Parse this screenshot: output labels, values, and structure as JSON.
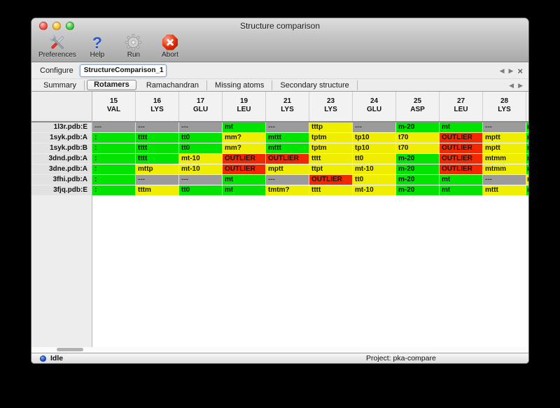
{
  "window_title": "Structure comparison",
  "toolbar": {
    "items": [
      {
        "label": "Preferences",
        "icon": "tools-icon"
      },
      {
        "label": "Help",
        "icon": "question-icon"
      },
      {
        "label": "Run",
        "icon": "gear-icon"
      },
      {
        "label": "Abort",
        "icon": "stop-x-icon"
      }
    ]
  },
  "configure": {
    "label": "Configure",
    "value": "StructureComparison_1"
  },
  "tabs": {
    "items": [
      "Summary",
      "Rotamers",
      "Ramachandran",
      "Missing atoms",
      "Secondary structure"
    ],
    "active": "Rotamers"
  },
  "rotamer_table": {
    "status_colors": {
      "green": "#00e400",
      "yellow": "#f0ee00",
      "red": "#f12800",
      "gray": "#9b9b9b"
    },
    "columns": [
      {
        "num": "15",
        "res": "VAL"
      },
      {
        "num": "16",
        "res": "LYS"
      },
      {
        "num": "17",
        "res": "GLU"
      },
      {
        "num": "19",
        "res": "LEU"
      },
      {
        "num": "21",
        "res": "LYS"
      },
      {
        "num": "23",
        "res": "LYS"
      },
      {
        "num": "24",
        "res": "GLU"
      },
      {
        "num": "25",
        "res": "ASP"
      },
      {
        "num": "27",
        "res": "LEU"
      },
      {
        "num": "28",
        "res": "LYS"
      }
    ],
    "rows": [
      {
        "label": "1l3r.pdb:E",
        "cells": [
          [
            "---",
            "gray"
          ],
          [
            "---",
            "gray"
          ],
          [
            "---",
            "gray"
          ],
          [
            "mt",
            "green"
          ],
          [
            "---",
            "gray"
          ],
          [
            "tttp",
            "yellow"
          ],
          [
            "---",
            "gray"
          ],
          [
            "m-20",
            "green"
          ],
          [
            "mt",
            "green"
          ],
          [
            "---",
            "gray"
          ]
        ],
        "clipped": [
          "m",
          "green"
        ]
      },
      {
        "label": "1syk.pdb:A",
        "cells": [
          [
            ":",
            "green"
          ],
          [
            "tttt",
            "green"
          ],
          [
            "tt0",
            "green"
          ],
          [
            "mm?",
            "yellow"
          ],
          [
            "mttt",
            "green"
          ],
          [
            "tptm",
            "yellow"
          ],
          [
            "tp10",
            "yellow"
          ],
          [
            "t70",
            "yellow"
          ],
          [
            "OUTLIER",
            "red"
          ],
          [
            "mptt",
            "yellow"
          ]
        ],
        "clipped": [
          "m",
          "green"
        ]
      },
      {
        "label": "1syk.pdb:B",
        "cells": [
          [
            ":",
            "green"
          ],
          [
            "tttt",
            "green"
          ],
          [
            "tt0",
            "green"
          ],
          [
            "mm?",
            "yellow"
          ],
          [
            "mttt",
            "green"
          ],
          [
            "tptm",
            "yellow"
          ],
          [
            "tp10",
            "yellow"
          ],
          [
            "t70",
            "yellow"
          ],
          [
            "OUTLIER",
            "red"
          ],
          [
            "mptt",
            "yellow"
          ]
        ],
        "clipped": [
          "m",
          "green"
        ]
      },
      {
        "label": "3dnd.pdb:A",
        "cells": [
          [
            ":",
            "green"
          ],
          [
            "tttt",
            "green"
          ],
          [
            "mt-10",
            "yellow"
          ],
          [
            "OUTLIER",
            "red"
          ],
          [
            "OUTLIER",
            "red"
          ],
          [
            "tttt",
            "yellow"
          ],
          [
            "tt0",
            "yellow"
          ],
          [
            "m-20",
            "green"
          ],
          [
            "OUTLIER",
            "red"
          ],
          [
            "mtmm",
            "yellow"
          ]
        ],
        "clipped": [
          "m",
          "green"
        ]
      },
      {
        "label": "3dne.pdb:A",
        "cells": [
          [
            ":",
            "green"
          ],
          [
            "mttp",
            "yellow"
          ],
          [
            "mt-10",
            "yellow"
          ],
          [
            "OUTLIER",
            "red"
          ],
          [
            "mptt",
            "yellow"
          ],
          [
            "ttpt",
            "yellow"
          ],
          [
            "mt-10",
            "yellow"
          ],
          [
            "m-20",
            "green"
          ],
          [
            "OUTLIER",
            "red"
          ],
          [
            "mtmm",
            "yellow"
          ]
        ],
        "clipped": [
          "m",
          "green"
        ]
      },
      {
        "label": "3fhi.pdb:A",
        "cells": [
          [
            ":",
            "green"
          ],
          [
            "---",
            "gray"
          ],
          [
            "---",
            "gray"
          ],
          [
            "mt",
            "green"
          ],
          [
            "---",
            "gray"
          ],
          [
            "OUTLIER",
            "red"
          ],
          [
            "tt0",
            "yellow"
          ],
          [
            "m-20",
            "green"
          ],
          [
            "mt",
            "green"
          ],
          [
            "---",
            "gray"
          ]
        ],
        "clipped": [
          "m",
          "yellow"
        ]
      },
      {
        "label": "3fjq.pdb:E",
        "cells": [
          [
            ":",
            "green"
          ],
          [
            "tttm",
            "yellow"
          ],
          [
            "tt0",
            "green"
          ],
          [
            "mt",
            "green"
          ],
          [
            "tmtm?",
            "yellow"
          ],
          [
            "tttt",
            "yellow"
          ],
          [
            "mt-10",
            "yellow"
          ],
          [
            "m-20",
            "green"
          ],
          [
            "mt",
            "green"
          ],
          [
            "mttt",
            "yellow"
          ]
        ],
        "clipped": [
          "m",
          "green"
        ]
      }
    ]
  },
  "statusbar": {
    "status": "Idle",
    "project": "Project: pka-compare"
  }
}
